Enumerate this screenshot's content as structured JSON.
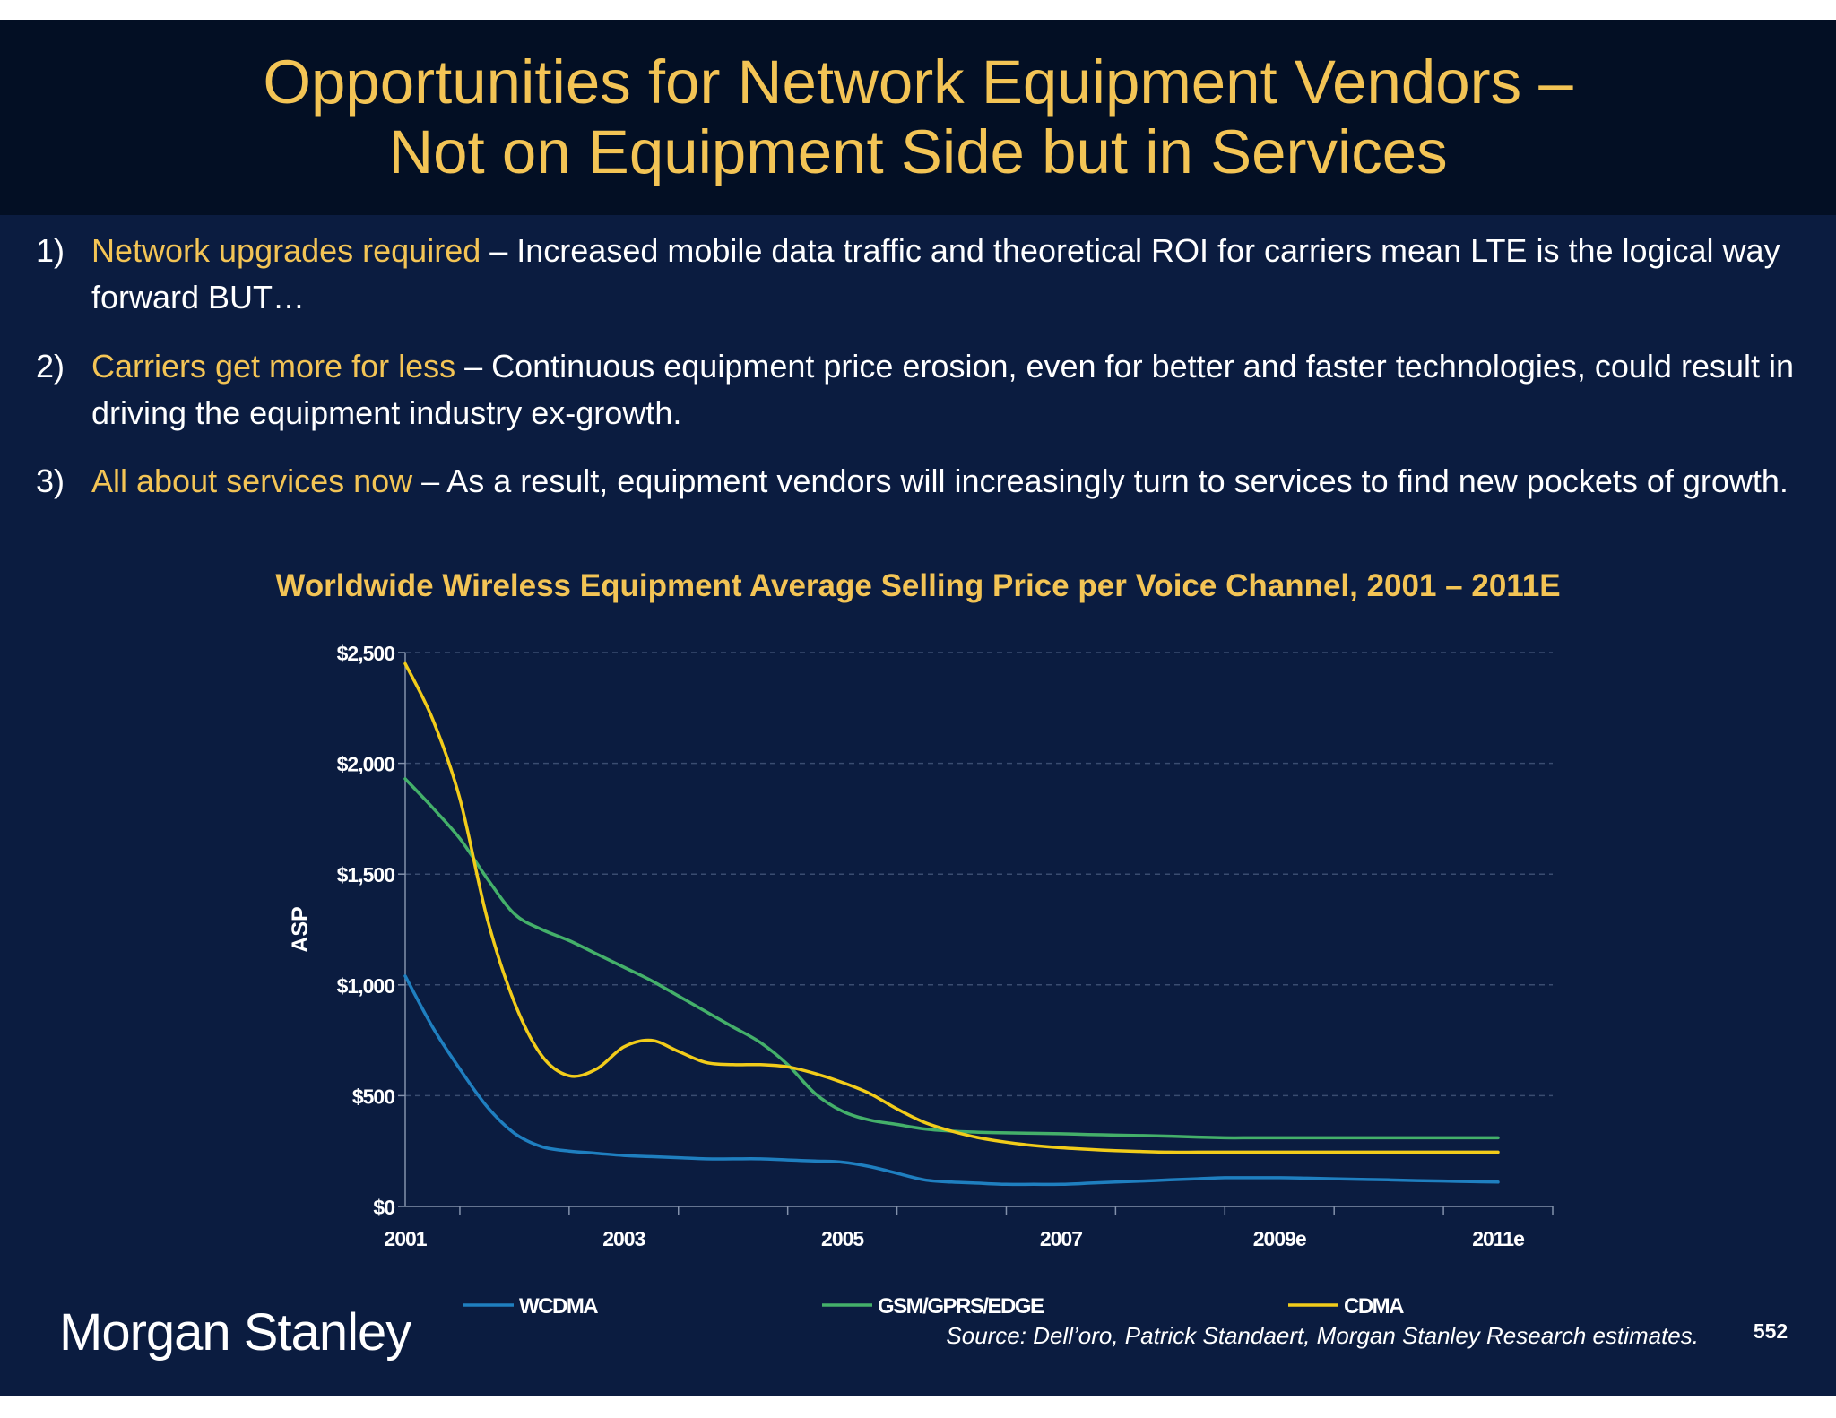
{
  "slide": {
    "title_line1": "Opportunities for Network Equipment Vendors –",
    "title_line2": "Not on Equipment Side but in Services",
    "bullets": [
      {
        "number": "1)",
        "highlight": "Network upgrades required",
        "text": " – Increased mobile data traffic and theoretical ROI for carriers mean LTE is the logical way forward BUT…"
      },
      {
        "number": "2)",
        "highlight": "Carriers get more for less",
        "text": " – Continuous equipment price erosion, even for better and faster technologies, could result in driving the equipment industry ex-growth."
      },
      {
        "number": "3)",
        "highlight": "All about services now",
        "text": " – As a result, equipment vendors will increasingly turn to services to find new pockets of growth."
      }
    ],
    "logo": "Morgan Stanley",
    "source": "Source: Dell’oro, Patrick Standaert, Morgan Stanley Research estimates.",
    "page_number": "552"
  },
  "colors": {
    "background": "#0b1c40",
    "title_band": "#030f24",
    "accent": "#f3c455",
    "text": "#ffffff"
  },
  "chart_data": {
    "type": "line",
    "title": "Worldwide Wireless Equipment Average Selling Price per Voice Channel, 2001 – 2011E",
    "xlabel": "",
    "ylabel": "ASP",
    "x": [
      2001,
      2001.25,
      2001.5,
      2001.75,
      2002,
      2002.25,
      2002.5,
      2002.75,
      2003,
      2003.25,
      2003.5,
      2003.75,
      2004,
      2004.25,
      2004.5,
      2004.75,
      2005,
      2005.25,
      2005.5,
      2005.75,
      2006,
      2006.25,
      2006.5,
      2006.75,
      2007,
      2007.25,
      2007.5,
      2007.75,
      2008,
      2008.25,
      2008.5,
      2008.75,
      2009,
      2009.25,
      2009.5,
      2009.75,
      2010,
      2010.25,
      2010.5,
      2010.75,
      2011
    ],
    "xticks": [
      {
        "value": 2001,
        "label": "2001"
      },
      {
        "value": 2003,
        "label": "2003"
      },
      {
        "value": 2005,
        "label": "2005"
      },
      {
        "value": 2007,
        "label": "2007"
      },
      {
        "value": 2009,
        "label": "2009e"
      },
      {
        "value": 2011,
        "label": "2011e"
      }
    ],
    "xlim": [
      2001,
      2011.5
    ],
    "ylim": [
      0,
      2500
    ],
    "yticks": [
      0,
      500,
      1000,
      1500,
      2000,
      2500
    ],
    "ytick_labels": [
      "$0",
      "$500",
      "$1,000",
      "$1,500",
      "$2,000",
      "$2,500"
    ],
    "grid": "horizontal dashed",
    "legend_position": "bottom",
    "series": [
      {
        "name": "WCDMA",
        "color": "#1f7fc0",
        "values": [
          1040,
          810,
          620,
          450,
          330,
          270,
          250,
          240,
          230,
          225,
          220,
          215,
          215,
          215,
          210,
          205,
          200,
          180,
          150,
          120,
          110,
          105,
          100,
          100,
          100,
          105,
          110,
          115,
          120,
          125,
          130,
          130,
          130,
          128,
          125,
          122,
          120,
          117,
          115,
          112,
          110
        ]
      },
      {
        "name": "GSM/GPRS/EDGE",
        "color": "#44b06a",
        "values": [
          1930,
          1800,
          1660,
          1480,
          1320,
          1250,
          1200,
          1140,
          1080,
          1020,
          950,
          880,
          810,
          740,
          640,
          510,
          430,
          390,
          370,
          350,
          340,
          335,
          332,
          330,
          328,
          325,
          322,
          320,
          317,
          313,
          310,
          310,
          310,
          310,
          310,
          310,
          310,
          310,
          310,
          310,
          310
        ]
      },
      {
        "name": "CDMA",
        "color": "#f2cc1a",
        "values": [
          2450,
          2200,
          1840,
          1300,
          920,
          680,
          590,
          620,
          720,
          750,
          700,
          650,
          640,
          640,
          630,
          600,
          560,
          510,
          440,
          380,
          340,
          310,
          290,
          275,
          265,
          258,
          252,
          248,
          245,
          245,
          245,
          245,
          245,
          245,
          245,
          245,
          245,
          245,
          245,
          245,
          245
        ]
      }
    ]
  }
}
